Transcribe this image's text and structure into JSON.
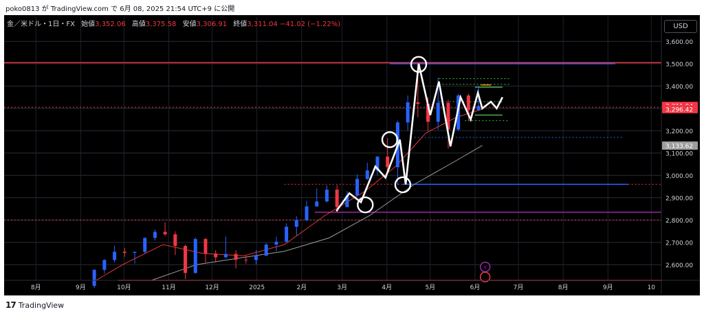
{
  "header": {
    "publish_line": "poko0813 が TradingView.com で 6月 08, 2025 21:54 UTC+9 に公開"
  },
  "symbol": {
    "name": "金／米ドル・1日・FX",
    "open_label": "始値",
    "open": "3,352.06",
    "high_label": "高値",
    "high": "3,375.58",
    "low_label": "安値",
    "low": "3,306.91",
    "close_label": "終値",
    "close": "3,311.04",
    "change": "−41.02 (−1.22%)"
  },
  "currency": "USD",
  "footer": {
    "brand": "TradingView",
    "logo_glyph": "17"
  },
  "colors": {
    "up": "#2962ff",
    "down": "#f23645",
    "ma_short": "#e53935",
    "ma_long": "#9e9e9e",
    "zigzag": "#ffffff",
    "resistance": "#f23645",
    "blue_level": "#2962ff",
    "purple_level": "#9c27b0",
    "green_level": "#4caf50"
  },
  "chart_data": {
    "type": "candlestick",
    "title": "",
    "ylim": [
      2530,
      3650
    ],
    "y_ticks": [
      2600,
      2700,
      2800,
      2900,
      3000,
      3100,
      3200,
      3300,
      3400,
      3500,
      3600
    ],
    "y_tick_labels": [
      "2,600.00",
      "2,700.00",
      "2,800.00",
      "2,900.00",
      "3,000.00",
      "3,100.00",
      "3,200.00",
      "3,300.00",
      "3,400.00",
      "3,500.00",
      "3,600.00"
    ],
    "x_ticks": [
      "2024-08-01",
      "2024-09-01",
      "2024-10-01",
      "2024-11-01",
      "2024-12-01",
      "2025-01-01",
      "2025-02-01",
      "2025-03-01",
      "2025-04-01",
      "2025-05-01",
      "2025-06-01",
      "2025-07-01",
      "2025-08-01",
      "2025-09-01",
      "2025-10-01"
    ],
    "x_tick_labels": [
      "8月",
      "9月",
      "10月",
      "11月",
      "12月",
      "2025",
      "2月",
      "3月",
      "4月",
      "5月",
      "6月",
      "7月",
      "8月",
      "9月",
      "10"
    ],
    "xlim": [
      "2024-07-10",
      "2025-10-08"
    ],
    "price_labels": [
      {
        "value": 3311.04,
        "text": "3,311.04",
        "color": "#f23645"
      },
      {
        "value": 3296.42,
        "text": "3,296.42",
        "color": "#f23645"
      },
      {
        "value": 3133.62,
        "text": "3,133.62",
        "color": "#9e9e9e"
      }
    ],
    "candles_weekly": [
      [
        "2024-09-09",
        2505,
        2580,
        2495,
        2577
      ],
      [
        "2024-09-16",
        2577,
        2625,
        2560,
        2621
      ],
      [
        "2024-09-23",
        2621,
        2685,
        2610,
        2658
      ],
      [
        "2024-09-30",
        2658,
        2675,
        2635,
        2653
      ],
      [
        "2024-10-07",
        2653,
        2660,
        2605,
        2657
      ],
      [
        "2024-10-14",
        2657,
        2722,
        2650,
        2720
      ],
      [
        "2024-10-21",
        2720,
        2758,
        2708,
        2747
      ],
      [
        "2024-10-28",
        2747,
        2790,
        2730,
        2736
      ],
      [
        "2024-11-04",
        2736,
        2750,
        2643,
        2684
      ],
      [
        "2024-11-11",
        2684,
        2690,
        2536,
        2563
      ],
      [
        "2024-11-18",
        2563,
        2722,
        2560,
        2715
      ],
      [
        "2024-11-25",
        2715,
        2720,
        2605,
        2650
      ],
      [
        "2024-12-02",
        2650,
        2665,
        2610,
        2633
      ],
      [
        "2024-12-09",
        2633,
        2726,
        2630,
        2648
      ],
      [
        "2024-12-16",
        2648,
        2665,
        2583,
        2622
      ],
      [
        "2024-12-23",
        2622,
        2640,
        2605,
        2621
      ],
      [
        "2024-12-30",
        2621,
        2665,
        2600,
        2640
      ],
      [
        "2025-01-06",
        2640,
        2697,
        2640,
        2690
      ],
      [
        "2025-01-13",
        2690,
        2725,
        2660,
        2703
      ],
      [
        "2025-01-20",
        2703,
        2786,
        2700,
        2770
      ],
      [
        "2025-01-27",
        2770,
        2817,
        2730,
        2800
      ],
      [
        "2025-02-03",
        2800,
        2886,
        2795,
        2861
      ],
      [
        "2025-02-10",
        2861,
        2942,
        2860,
        2883
      ],
      [
        "2025-02-17",
        2883,
        2955,
        2880,
        2936
      ],
      [
        "2025-02-24",
        2936,
        2956,
        2833,
        2858
      ],
      [
        "2025-03-03",
        2858,
        2930,
        2860,
        2910
      ],
      [
        "2025-03-10",
        2910,
        3005,
        2906,
        2984
      ],
      [
        "2025-03-17",
        2984,
        3057,
        2980,
        3022
      ],
      [
        "2025-03-24",
        3022,
        3086,
        3000,
        3084
      ],
      [
        "2025-03-31",
        3084,
        3167,
        3015,
        3037
      ],
      [
        "2025-04-07",
        3037,
        3245,
        2957,
        3237
      ],
      [
        "2025-04-14",
        3237,
        3358,
        3200,
        3327
      ],
      [
        "2025-04-21",
        3327,
        3500,
        3260,
        3320
      ],
      [
        "2025-04-28",
        3320,
        3350,
        3200,
        3240
      ],
      [
        "2025-05-05",
        3240,
        3438,
        3205,
        3325
      ],
      [
        "2025-05-12",
        3325,
        3340,
        3120,
        3205
      ],
      [
        "2025-05-19",
        3205,
        3366,
        3200,
        3358
      ],
      [
        "2025-05-26",
        3358,
        3366,
        3245,
        3292
      ],
      [
        "2025-06-02",
        3292,
        3403,
        3300,
        3311
      ]
    ],
    "ma_short": [
      [
        "2024-09-09",
        2520
      ],
      [
        "2024-09-30",
        2600
      ],
      [
        "2024-10-28",
        2690
      ],
      [
        "2024-11-25",
        2650
      ],
      [
        "2024-12-23",
        2640
      ],
      [
        "2025-01-20",
        2690
      ],
      [
        "2025-02-17",
        2820
      ],
      [
        "2025-03-17",
        2930
      ],
      [
        "2025-04-07",
        3040
      ],
      [
        "2025-04-28",
        3190
      ],
      [
        "2025-05-19",
        3260
      ],
      [
        "2025-06-06",
        3296
      ]
    ],
    "ma_long": [
      [
        "2024-10-20",
        2530
      ],
      [
        "2024-11-20",
        2600
      ],
      [
        "2024-12-20",
        2630
      ],
      [
        "2025-01-20",
        2660
      ],
      [
        "2025-02-20",
        2720
      ],
      [
        "2025-03-20",
        2820
      ],
      [
        "2025-04-20",
        2960
      ],
      [
        "2025-05-20",
        3070
      ],
      [
        "2025-06-06",
        3134
      ]
    ],
    "zigzag": [
      [
        "2025-02-25",
        2840
      ],
      [
        "2025-03-06",
        2920
      ],
      [
        "2025-03-14",
        2880
      ],
      [
        "2025-03-24",
        3040
      ],
      [
        "2025-03-31",
        2990
      ],
      [
        "2025-04-10",
        3160
      ],
      [
        "2025-04-14",
        2960
      ],
      [
        "2025-04-23",
        3500
      ],
      [
        "2025-05-01",
        3270
      ],
      [
        "2025-05-07",
        3420
      ],
      [
        "2025-05-15",
        3130
      ],
      [
        "2025-05-22",
        3350
      ],
      [
        "2025-05-29",
        3250
      ],
      [
        "2025-06-03",
        3370
      ],
      [
        "2025-06-06",
        3300
      ],
      [
        "2025-06-12",
        3330
      ],
      [
        "2025-06-16",
        3300
      ],
      [
        "2025-06-20",
        3350
      ]
    ],
    "circles": [
      [
        "2025-03-17",
        2868
      ],
      [
        "2025-04-03",
        3160
      ],
      [
        "2025-04-12",
        2958
      ],
      [
        "2025-04-23",
        3497
      ]
    ],
    "levels": [
      {
        "y": 3505,
        "x0": "2024-07-10",
        "x1": "2025-10-08",
        "color": "#f23645",
        "style": "solid"
      },
      {
        "y": 3500,
        "x0": "2025-04-03",
        "x1": "2025-09-06",
        "color": "#2962ff",
        "style": "solid"
      },
      {
        "y": 3305,
        "x0": "2024-07-10",
        "x1": "2025-10-08",
        "color": "#f23645",
        "style": "dotted"
      },
      {
        "y": 3170,
        "x0": "2025-04-20",
        "x1": "2025-09-12",
        "color": "#2962ff",
        "style": "dotted"
      },
      {
        "y": 2960,
        "x0": "2025-01-20",
        "x1": "2025-10-08",
        "color": "#f23645",
        "style": "dotted"
      },
      {
        "y": 2960,
        "x0": "2025-04-12",
        "x1": "2025-09-15",
        "color": "#2962ff",
        "style": "solid"
      },
      {
        "y": 2835,
        "x0": "2025-02-10",
        "x1": "2025-10-08",
        "color": "#9c27b0",
        "style": "solid"
      },
      {
        "y": 2800,
        "x0": "2024-07-10",
        "x1": "2025-10-08",
        "color": "#f23645",
        "style": "dotted"
      },
      {
        "y": 2530,
        "x0": "2024-09-27",
        "x1": "2025-10-08",
        "color": "#f23645",
        "style": "solid"
      },
      {
        "y": 3433,
        "x0": "2025-05-07",
        "x1": "2025-06-25",
        "color": "#4caf50",
        "style": "dotted"
      },
      {
        "y": 3408,
        "x0": "2025-05-07",
        "x1": "2025-06-25",
        "color": "#4caf50",
        "style": "dotted"
      },
      {
        "y": 3395,
        "x0": "2025-06-01",
        "x1": "2025-06-20",
        "color": "#4caf50",
        "style": "solid"
      },
      {
        "y": 3330,
        "x0": "2025-05-07",
        "x1": "2025-06-20",
        "color": "#4caf50",
        "style": "dotted"
      },
      {
        "y": 3270,
        "x0": "2025-06-01",
        "x1": "2025-06-20",
        "color": "#4caf50",
        "style": "solid"
      },
      {
        "y": 3245,
        "x0": "2025-05-25",
        "x1": "2025-06-25",
        "color": "#4caf50",
        "style": "dotted"
      },
      {
        "y": 3405,
        "x0": "2025-06-05",
        "x1": "2025-06-12",
        "color": "#ff9800",
        "style": "solid"
      }
    ],
    "event_markers": [
      {
        "date": "2025-06-08",
        "y": 2590,
        "glyph": "⚡",
        "color": "#9c27b0"
      },
      {
        "date": "2025-06-08",
        "y": 2545,
        "glyph": "",
        "color": "#f23645"
      }
    ]
  }
}
